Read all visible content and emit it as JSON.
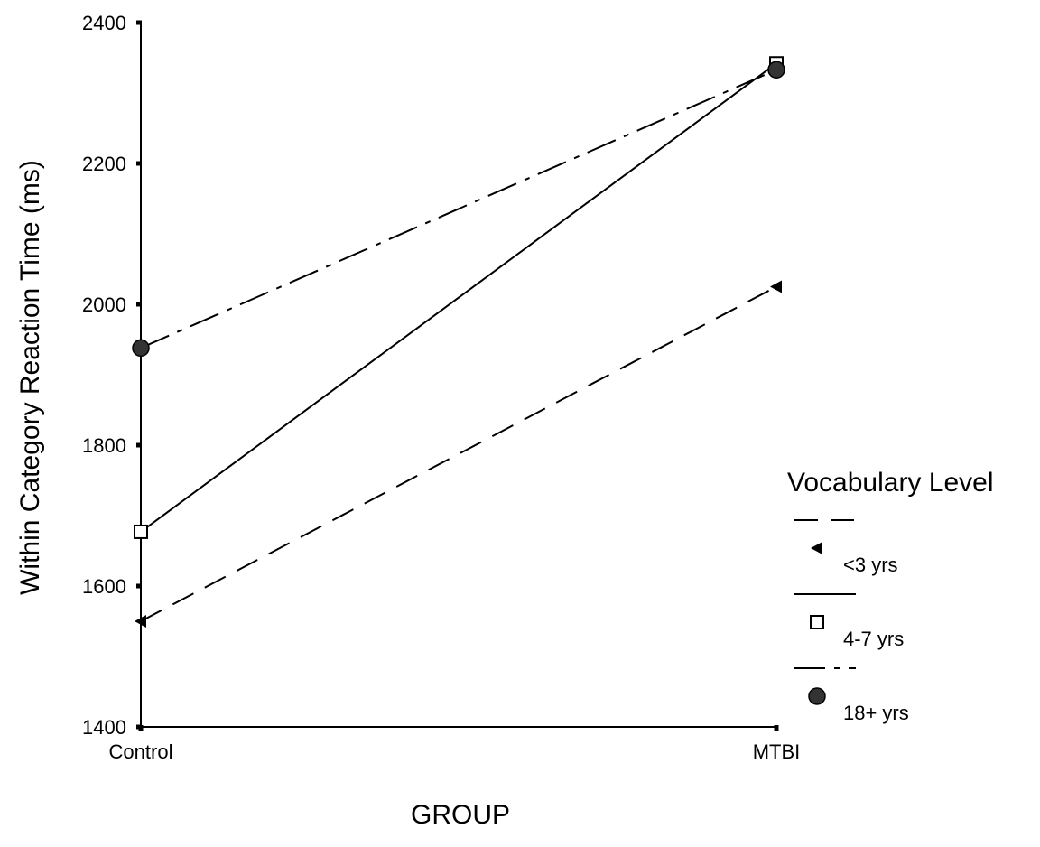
{
  "chart_data": {
    "type": "line",
    "title": "",
    "xlabel": "GROUP",
    "ylabel": "Within Category Reaction Time (ms)",
    "categories": [
      "Control",
      "MTBI"
    ],
    "ylim": [
      1400,
      2400
    ],
    "yticks": [
      "1400",
      "1600",
      "1800",
      "2000",
      "2200",
      "2400"
    ],
    "grid": false,
    "legend": {
      "title": "Vocabulary Level",
      "position": "right"
    },
    "series": [
      {
        "name": "<3 yrs",
        "values": [
          1550,
          2025
        ],
        "marker": "triangle-left",
        "dash": "dashed"
      },
      {
        "name": "4-7 yrs",
        "values": [
          1677,
          2342
        ],
        "marker": "square-open",
        "dash": "solid"
      },
      {
        "name": "18+ yrs",
        "values": [
          1938,
          2333
        ],
        "marker": "circle-filled",
        "dash": "dash-dot"
      }
    ]
  }
}
